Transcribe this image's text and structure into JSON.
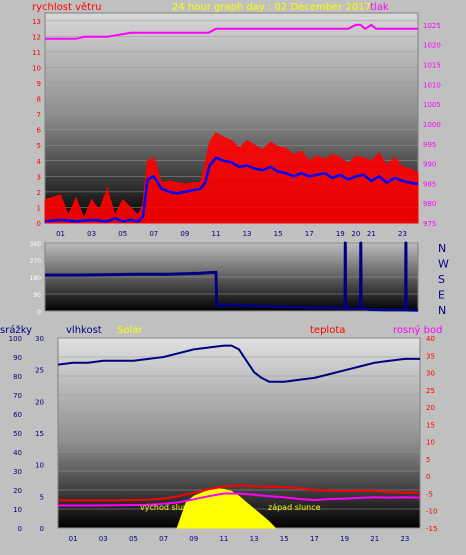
{
  "header": {
    "title": "24 hour graph day : 02 December 2017",
    "wind_label": "rychlost větru",
    "pressure_label": "tlak"
  },
  "colors": {
    "bg": "#c0c0c0",
    "wind": "#ff0000",
    "wind_avg": "#0000ff",
    "pressure": "#ff00ff",
    "direction": "#000080",
    "humidity": "#000080",
    "temperature": "#ff0000",
    "dewpoint": "#ff00ff",
    "solar": "#ffff00",
    "title": "#ffff00",
    "left_axis": "#ff0000"
  },
  "bottom_labels": {
    "rain": "srážky",
    "humidity": "vlhkost",
    "solar": "Solar",
    "temperature": "teplota",
    "dewpoint": "rosný bod",
    "sunrise": "východ slunce",
    "sunset": "západ slunce"
  },
  "chart_data": [
    {
      "type": "line",
      "name": "wind_pressure",
      "x_ticks": [
        "01",
        "03",
        "05",
        "07",
        "09",
        "11",
        "13",
        "15",
        "17",
        "19",
        "20",
        "21",
        "23"
      ],
      "y_left_ticks": [
        0,
        1,
        2,
        3,
        4,
        5,
        6,
        7,
        8,
        9,
        10,
        11,
        12,
        13
      ],
      "y_left_range": [
        0,
        13.5
      ],
      "y_right_ticks": [
        975,
        980,
        985,
        990,
        995,
        1000,
        1005,
        1010,
        1015,
        1020,
        1025
      ],
      "y_right_range": [
        975,
        1028
      ],
      "series": [
        {
          "key": "wind_gust",
          "x": [
            0,
            1,
            1.5,
            2,
            2.5,
            3,
            3.5,
            4,
            4.5,
            5,
            5.5,
            6,
            6.3,
            6.6,
            7,
            7.5,
            8,
            8.5,
            9,
            9.5,
            10,
            10.3,
            10.6,
            11,
            11.5,
            12,
            12.5,
            13,
            13.5,
            14,
            14.5,
            15,
            15.5,
            16,
            16.5,
            17,
            17.5,
            18,
            18.5,
            19,
            19.5,
            20,
            20.5,
            21,
            21.5,
            22,
            22.5,
            23,
            23.5,
            24
          ],
          "y": [
            1.5,
            1.8,
            0.5,
            1.6,
            0.3,
            1.5,
            0.8,
            2.2,
            0.5,
            1.5,
            1.0,
            0.5,
            1.2,
            4.0,
            4.2,
            2.6,
            2.7,
            2.6,
            2.5,
            2.6,
            2.6,
            3.8,
            5.2,
            5.8,
            5.5,
            5.3,
            4.8,
            5.3,
            5.0,
            4.7,
            5.2,
            4.9,
            4.8,
            4.4,
            4.6,
            4.0,
            4.3,
            4.1,
            4.4,
            4.2,
            3.8,
            4.3,
            4.2,
            4.0,
            4.5,
            3.7,
            4.2,
            3.6,
            3.5,
            3.2
          ]
        },
        {
          "key": "wind_avg",
          "x": [
            0,
            1,
            2,
            3,
            4,
            4.5,
            5,
            5.5,
            6,
            6.3,
            6.6,
            7,
            7.5,
            8,
            8.5,
            9,
            9.5,
            10,
            10.3,
            10.6,
            11,
            11.5,
            12,
            12.5,
            13,
            13.5,
            14,
            14.5,
            15,
            15.5,
            16,
            16.5,
            17,
            17.5,
            18,
            18.5,
            19,
            19.5,
            20,
            20.5,
            21,
            21.5,
            22,
            22.5,
            23,
            23.5,
            24
          ],
          "y": [
            0.1,
            0.2,
            0.1,
            0.2,
            0.1,
            0.3,
            0.1,
            0.2,
            0.1,
            0.4,
            2.8,
            3.0,
            2.2,
            2.0,
            1.9,
            2.0,
            2.1,
            2.2,
            2.6,
            3.7,
            4.2,
            4.0,
            3.9,
            3.6,
            3.7,
            3.5,
            3.4,
            3.6,
            3.3,
            3.2,
            3.0,
            3.2,
            3.0,
            3.1,
            3.2,
            2.9,
            3.1,
            2.8,
            3.0,
            3.1,
            2.7,
            3.0,
            2.6,
            2.9,
            2.7,
            2.6,
            2.5
          ]
        },
        {
          "key": "pressure",
          "x": [
            0,
            2,
            2.5,
            4,
            5.5,
            7,
            9,
            10.5,
            11,
            13,
            15,
            17,
            19,
            19.5,
            20,
            20.3,
            20.6,
            21,
            21.3,
            22,
            23,
            24
          ],
          "y": [
            1021.5,
            1021.5,
            1022,
            1022,
            1023,
            1023,
            1023,
            1023,
            1024,
            1024,
            1024,
            1024,
            1024,
            1024,
            1025,
            1025,
            1024,
            1025,
            1024,
            1024,
            1024,
            1024
          ]
        }
      ]
    },
    {
      "type": "line",
      "name": "wind_direction",
      "y_ticks": [
        0,
        90,
        180,
        270,
        360
      ],
      "y_range": [
        0,
        360
      ],
      "dir_labels": [
        "N",
        "W",
        "S",
        "E",
        "N"
      ],
      "series": [
        {
          "key": "direction",
          "x": [
            0,
            2,
            4,
            6,
            8,
            10,
            11,
            11.05,
            12,
            14,
            16,
            18,
            19,
            19.3,
            19.32,
            19.34,
            19.6,
            20,
            20.3,
            20.32,
            20.34,
            20.7,
            21,
            22,
            23,
            23.2,
            23.22,
            23.24,
            23.6,
            24
          ],
          "y": [
            190,
            190,
            192,
            195,
            195,
            200,
            205,
            30,
            32,
            25,
            20,
            18,
            15,
            15,
            360,
            15,
            12,
            14,
            14,
            360,
            14,
            10,
            8,
            6,
            6,
            6,
            360,
            6,
            5,
            5
          ]
        }
      ]
    },
    {
      "type": "line",
      "name": "humidity_temperature",
      "x_ticks": [
        "01",
        "03",
        "05",
        "07",
        "09",
        "11",
        "13",
        "15",
        "17",
        "19",
        "21",
        "23"
      ],
      "y_rain_ticks": [
        0,
        10,
        20,
        30,
        40,
        50,
        60,
        70,
        80,
        90,
        100
      ],
      "y_solar_ticks": [
        0,
        5,
        10,
        15,
        20,
        25,
        30
      ],
      "y_temp_ticks": [
        -15,
        -10,
        -5,
        0,
        5,
        10,
        15,
        20,
        25,
        30,
        35,
        40
      ],
      "y_temp_range": [
        -15,
        40
      ],
      "series": [
        {
          "key": "humidity",
          "x": [
            0,
            1,
            2,
            3,
            4,
            5,
            6,
            7,
            8,
            9,
            10,
            11,
            11.5,
            12,
            12.5,
            13,
            13.5,
            14,
            15,
            16,
            17,
            18,
            19,
            20,
            21,
            22,
            23,
            24
          ],
          "y": [
            86,
            87,
            87,
            88,
            88,
            88,
            89,
            90,
            92,
            94,
            95,
            96,
            96,
            94,
            88,
            82,
            79,
            77,
            77,
            78,
            79,
            81,
            83,
            85,
            87,
            88,
            89,
            89
          ]
        },
        {
          "key": "temperature",
          "x": [
            0,
            2,
            4,
            6,
            7,
            8,
            9,
            10,
            11,
            12,
            13,
            14,
            15,
            16,
            17,
            18,
            19,
            20,
            21,
            22,
            23,
            24
          ],
          "y": [
            -7,
            -7,
            -7,
            -6.8,
            -6.5,
            -5.8,
            -4.8,
            -3.8,
            -3,
            -2.7,
            -2.9,
            -3,
            -3.2,
            -3.5,
            -4,
            -4.2,
            -4.3,
            -4.2,
            -4.3,
            -4.6,
            -4.8,
            -4.8
          ]
        },
        {
          "key": "dewpoint",
          "x": [
            0,
            2,
            4,
            6,
            7,
            8,
            9,
            10,
            11,
            12,
            13,
            14,
            15,
            16,
            17,
            18,
            19,
            20,
            21,
            22,
            23,
            24
          ],
          "y": [
            -8.5,
            -8.5,
            -8.4,
            -8.3,
            -8,
            -7.6,
            -6.7,
            -5.8,
            -5,
            -5,
            -5.4,
            -5.8,
            -6.1,
            -6.6,
            -6.9,
            -6.6,
            -6.5,
            -6.3,
            -6.1,
            -6.2,
            -6.1,
            -6.2
          ]
        },
        {
          "key": "solar",
          "x": [
            7.9,
            8.5,
            9,
            9.5,
            10,
            10.5,
            11,
            11.5,
            12,
            12.5,
            13,
            13.5,
            14,
            14.4
          ],
          "y": [
            0,
            4,
            5,
            5.5,
            6,
            6.2,
            6.1,
            5.8,
            5,
            4,
            3,
            2,
            1,
            0
          ]
        }
      ]
    }
  ]
}
